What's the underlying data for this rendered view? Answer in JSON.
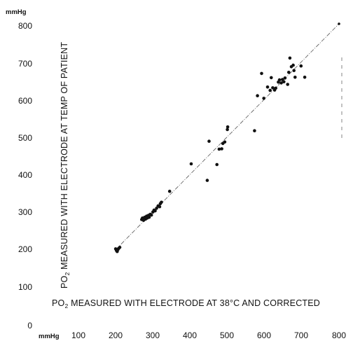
{
  "chart_data": {
    "type": "scatter",
    "title": "",
    "xlabel": {
      "prefix": "PO",
      "subscript": "2",
      "rest": " MEASURED WITH ELECTRODE AT 38°C AND CORRECTED"
    },
    "ylabel": {
      "prefix": "PO",
      "subscript": "2",
      "rest": " MEASURED WITH ELECTRODE AT TEMP OF PATIENT"
    },
    "x_unit": "mmHg",
    "y_unit": "mmHg",
    "xlim": [
      100,
      800
    ],
    "ylim": [
      0,
      800
    ],
    "x_ticks": [
      "100",
      "200",
      "300",
      "400",
      "500",
      "600",
      "700",
      "800"
    ],
    "y_ticks": [
      "0",
      "100",
      "200",
      "300",
      "400",
      "500",
      "600",
      "700",
      "800"
    ],
    "identity_line": {
      "x": [
        200,
        800
      ],
      "y": [
        200,
        800
      ]
    },
    "points": [
      {
        "x": 200,
        "y": 202
      },
      {
        "x": 202,
        "y": 198
      },
      {
        "x": 204,
        "y": 195
      },
      {
        "x": 206,
        "y": 200
      },
      {
        "x": 208,
        "y": 203
      },
      {
        "x": 211,
        "y": 206
      },
      {
        "x": 270,
        "y": 280
      },
      {
        "x": 272,
        "y": 284
      },
      {
        "x": 275,
        "y": 278
      },
      {
        "x": 278,
        "y": 286
      },
      {
        "x": 280,
        "y": 281
      },
      {
        "x": 283,
        "y": 289
      },
      {
        "x": 285,
        "y": 284
      },
      {
        "x": 288,
        "y": 291
      },
      {
        "x": 290,
        "y": 286
      },
      {
        "x": 293,
        "y": 294
      },
      {
        "x": 296,
        "y": 292
      },
      {
        "x": 300,
        "y": 300
      },
      {
        "x": 303,
        "y": 305
      },
      {
        "x": 306,
        "y": 303
      },
      {
        "x": 310,
        "y": 310
      },
      {
        "x": 314,
        "y": 316
      },
      {
        "x": 318,
        "y": 314
      },
      {
        "x": 320,
        "y": 322
      },
      {
        "x": 323,
        "y": 326
      },
      {
        "x": 345,
        "y": 355
      },
      {
        "x": 403,
        "y": 428
      },
      {
        "x": 446,
        "y": 384
      },
      {
        "x": 451,
        "y": 488
      },
      {
        "x": 472,
        "y": 426
      },
      {
        "x": 478,
        "y": 467
      },
      {
        "x": 485,
        "y": 468
      },
      {
        "x": 488,
        "y": 482
      },
      {
        "x": 493,
        "y": 486
      },
      {
        "x": 500,
        "y": 519
      },
      {
        "x": 501,
        "y": 526
      },
      {
        "x": 573,
        "y": 516
      },
      {
        "x": 581,
        "y": 609
      },
      {
        "x": 592,
        "y": 668
      },
      {
        "x": 598,
        "y": 602
      },
      {
        "x": 608,
        "y": 632
      },
      {
        "x": 615,
        "y": 623
      },
      {
        "x": 618,
        "y": 657
      },
      {
        "x": 622,
        "y": 630
      },
      {
        "x": 627,
        "y": 624
      },
      {
        "x": 630,
        "y": 629
      },
      {
        "x": 637,
        "y": 645
      },
      {
        "x": 640,
        "y": 651
      },
      {
        "x": 645,
        "y": 643
      },
      {
        "x": 648,
        "y": 652
      },
      {
        "x": 652,
        "y": 646
      },
      {
        "x": 655,
        "y": 656
      },
      {
        "x": 662,
        "y": 639
      },
      {
        "x": 665,
        "y": 671
      },
      {
        "x": 668,
        "y": 709
      },
      {
        "x": 672,
        "y": 686
      },
      {
        "x": 677,
        "y": 690
      },
      {
        "x": 679,
        "y": 676
      },
      {
        "x": 682,
        "y": 658
      },
      {
        "x": 698,
        "y": 688
      },
      {
        "x": 708,
        "y": 658
      }
    ]
  }
}
